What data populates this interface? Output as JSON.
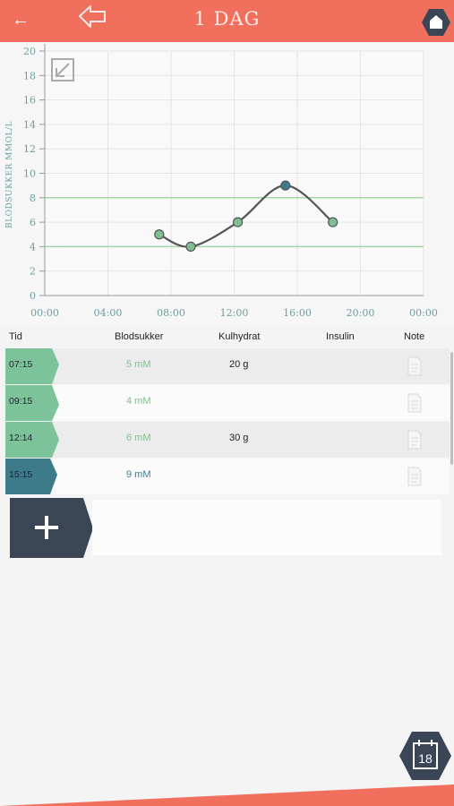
{
  "header": {
    "title": "1 DAG"
  },
  "chart_data": {
    "type": "line",
    "ylabel": "BLODSUKKER MMOL/L",
    "xlabel": "",
    "ylim": [
      0,
      20
    ],
    "yticks": [
      "0",
      "2",
      "4",
      "6",
      "8",
      "10",
      "12",
      "14",
      "16",
      "18",
      "20"
    ],
    "xticks": [
      "00:00",
      "04:00",
      "08:00",
      "12:00",
      "16:00",
      "20:00",
      "00:00"
    ],
    "xlim_hours": [
      0,
      24
    ],
    "target_range": [
      4,
      8
    ],
    "series": [
      {
        "x": [
          "07:15",
          "09:15",
          "12:14",
          "15:15",
          "18:15"
        ],
        "x_hours": [
          7.25,
          9.25,
          12.23,
          15.25,
          18.25
        ],
        "values": [
          5,
          4,
          6,
          9,
          6
        ]
      }
    ],
    "colors": {
      "line": "#555555",
      "point": "#7fbf93",
      "highlight_point": "#3c7a8c",
      "band": "#a8d5a8"
    }
  },
  "table": {
    "headers": {
      "time": "Tid",
      "bloodsugar": "Blodsukker",
      "carbs": "Kulhydrat",
      "insulin": "Insulin",
      "note": "Note"
    },
    "rows": [
      {
        "time": "07:15",
        "bloodsugar": "5 mM",
        "carbs": "20 g",
        "insulin": "",
        "tag_color": "#7cc39a"
      },
      {
        "time": "09:15",
        "bloodsugar": "4 mM",
        "carbs": "",
        "insulin": "",
        "tag_color": "#7cc39a"
      },
      {
        "time": "12:14",
        "bloodsugar": "6 mM",
        "carbs": "30 g",
        "insulin": "",
        "tag_color": "#7cc39a"
      },
      {
        "time": "15:15",
        "bloodsugar": "9 mM",
        "carbs": "",
        "insulin": "",
        "tag_color": "#3e7b89"
      }
    ]
  },
  "calendar": {
    "day": "18"
  },
  "colors": {
    "accent": "#f16f5d",
    "dark": "#3a4556",
    "green": "#7cc39a",
    "teal": "#3e7b89"
  }
}
